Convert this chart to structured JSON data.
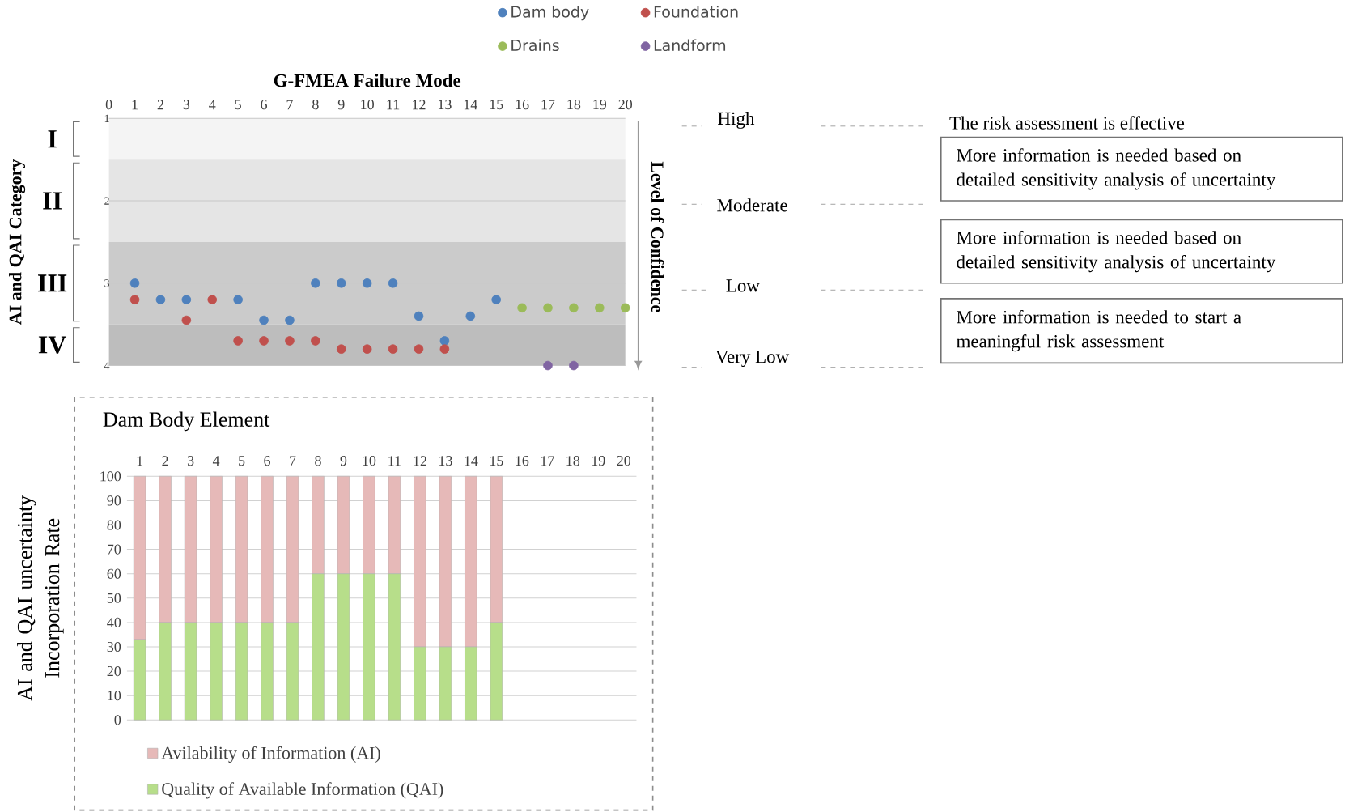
{
  "chart_data": [
    {
      "type": "scatter",
      "xlabel": "G-FMEA Failure Mode",
      "ylabel": "AI and QAI Category",
      "y2label": "Level of Confidence",
      "xlim": [
        0,
        20
      ],
      "xticks": [
        0,
        1,
        2,
        3,
        4,
        5,
        6,
        7,
        8,
        9,
        10,
        11,
        12,
        13,
        14,
        15,
        16,
        17,
        18,
        19,
        20
      ],
      "ylim": [
        4,
        1
      ],
      "yticks": [
        1,
        2,
        3,
        4
      ],
      "grid": "y",
      "legend": "top",
      "series": [
        {
          "name": "Dam body",
          "color": "#4f81bd",
          "x": [
            1,
            2,
            3,
            5,
            6,
            7,
            8,
            9,
            10,
            11,
            12,
            13,
            14,
            15
          ],
          "values": [
            3.0,
            3.2,
            3.2,
            3.2,
            3.45,
            3.45,
            3.0,
            3.0,
            3.0,
            3.0,
            3.4,
            3.7,
            3.4,
            3.2
          ]
        },
        {
          "name": "Foundation",
          "color": "#c0504d",
          "x": [
            1,
            3,
            4,
            5,
            6,
            7,
            8,
            9,
            10,
            11,
            12,
            13
          ],
          "values": [
            3.2,
            3.45,
            3.2,
            3.7,
            3.7,
            3.7,
            3.7,
            3.8,
            3.8,
            3.8,
            3.8,
            3.8
          ]
        },
        {
          "name": "Drains",
          "color": "#9bbb59",
          "x": [
            16,
            17,
            18,
            19,
            20
          ],
          "values": [
            3.3,
            3.3,
            3.3,
            3.3,
            3.3
          ]
        },
        {
          "name": "Landform",
          "color": "#8064a2",
          "x": [
            17,
            18
          ],
          "values": [
            4.0,
            4.0
          ]
        }
      ],
      "bands": [
        {
          "axis": "y",
          "from": 1,
          "to": 1.5,
          "label": "I",
          "color": "#f4f4f4"
        },
        {
          "axis": "y",
          "from": 1.5,
          "to": 2.5,
          "label": "II",
          "color": "#e5e5e5"
        },
        {
          "axis": "y",
          "from": 2.5,
          "to": 3.5,
          "label": "III",
          "color": "#cbcbcb"
        },
        {
          "axis": "y",
          "from": 3.5,
          "to": 4,
          "label": "IV",
          "color": "#bdbdbd"
        }
      ],
      "annotations": [
        "High",
        "Moderate",
        "Low",
        "Very Low",
        "The risk assessment is effective",
        "More information is needed based on detailed sensitivity analysis of uncertainty",
        "More information is needed based on detailed sensitivity analysis of uncertainty",
        "More information is needed to start a meaningful risk assessment"
      ]
    },
    {
      "type": "bar",
      "title": "Dam Body Element",
      "ylabel": "AI and QAI uncertainty Incorporation Rate",
      "categories": [
        "1",
        "2",
        "3",
        "4",
        "5",
        "6",
        "7",
        "8",
        "9",
        "10",
        "11",
        "12",
        "13",
        "14",
        "15",
        "16",
        "17",
        "18",
        "19",
        "20"
      ],
      "ylim": [
        0,
        100
      ],
      "yticks": [
        0,
        10,
        20,
        30,
        40,
        50,
        60,
        70,
        80,
        90,
        100
      ],
      "grid": "y",
      "stacked": true,
      "legend": "bottom",
      "series": [
        {
          "name": "Quality of Available Information (QAI)",
          "color": "#b7de8a",
          "values": [
            33,
            40,
            40,
            40,
            40,
            40,
            40,
            60,
            60,
            60,
            60,
            30,
            30,
            30,
            40,
            null,
            null,
            null,
            null,
            null
          ]
        },
        {
          "name": "Avilability of Information (AI)",
          "color": "#e6b9b8",
          "values": [
            67,
            60,
            60,
            60,
            60,
            60,
            60,
            40,
            40,
            40,
            40,
            70,
            70,
            70,
            60,
            null,
            null,
            null,
            null,
            null
          ]
        }
      ]
    }
  ]
}
